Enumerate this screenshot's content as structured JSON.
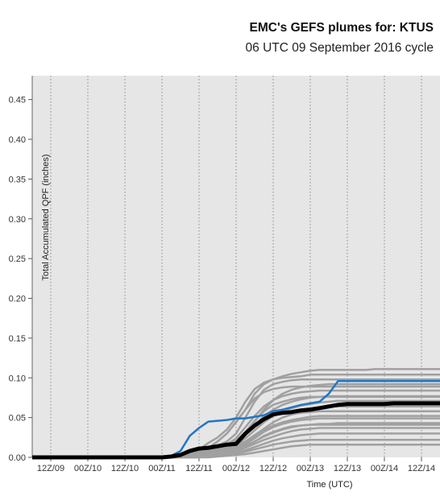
{
  "header": {
    "title": "EMC's GEFS plumes for: KTUS",
    "subtitle": "06 UTC 09 September 2016 cycle"
  },
  "chart_data": {
    "type": "line",
    "title": "EMC's GEFS plumes for: KTUS",
    "subtitle": "06 UTC 09 September 2016 cycle",
    "xlabel": "Time (UTC)",
    "ylabel": "Total Accumulated QPF (inches)",
    "x_unit_note": "forecast hour from 06 UTC 09 Sep 2016",
    "xlim": [
      0,
      132
    ],
    "ylim": [
      0,
      0.48
    ],
    "yticks": [
      0.0,
      0.05,
      0.1,
      0.15,
      0.2,
      0.25,
      0.3,
      0.35,
      0.4,
      0.45
    ],
    "ytick_labels": [
      "0.00",
      "0.05",
      "0.10",
      "0.15",
      "0.20",
      "0.25",
      "0.30",
      "0.35",
      "0.40",
      "0.45"
    ],
    "xticks": [
      6,
      18,
      30,
      42,
      54,
      66,
      78,
      90,
      102,
      114,
      126
    ],
    "xtick_labels": [
      "12Z/09",
      "00Z/10",
      "12Z/10",
      "00Z/11",
      "12Z/11",
      "00Z/12",
      "12Z/12",
      "00Z/13",
      "12Z/13",
      "00Z/14",
      "12Z/14"
    ],
    "grid": "vertical dotted",
    "background": "#e6e6e6",
    "colors": {
      "members": "#a0a0a0",
      "control": "#1f77c4",
      "mean": "#000000"
    },
    "x": [
      0,
      3,
      6,
      9,
      12,
      15,
      18,
      21,
      24,
      27,
      30,
      33,
      36,
      39,
      42,
      45,
      48,
      51,
      54,
      57,
      60,
      63,
      66,
      69,
      72,
      75,
      78,
      81,
      84,
      87,
      90,
      93,
      96,
      99,
      102,
      105,
      108,
      111,
      114,
      117,
      120,
      123,
      126,
      129,
      132
    ],
    "series": [
      {
        "role": "control",
        "values": [
          0,
          0,
          0,
          0,
          0,
          0,
          0,
          0,
          0,
          0,
          0,
          0,
          0,
          0,
          0,
          0.002,
          0.008,
          0.027,
          0.037,
          0.045,
          0.046,
          0.047,
          0.049,
          0.049,
          0.051,
          0.053,
          0.058,
          0.06,
          0.063,
          0.066,
          0.068,
          0.07,
          0.08,
          0.096,
          0.096,
          0.096,
          0.096,
          0.096,
          0.096,
          0.096,
          0.096,
          0.096,
          0.096,
          0.096,
          0.096
        ]
      },
      {
        "role": "mean",
        "values": [
          0,
          0,
          0,
          0,
          0,
          0,
          0,
          0,
          0,
          0,
          0,
          0,
          0,
          0,
          0,
          0.001,
          0.003,
          0.008,
          0.011,
          0.012,
          0.014,
          0.016,
          0.017,
          0.03,
          0.04,
          0.048,
          0.054,
          0.056,
          0.057,
          0.059,
          0.06,
          0.062,
          0.064,
          0.066,
          0.067,
          0.067,
          0.067,
          0.067,
          0.067,
          0.068,
          0.068,
          0.068,
          0.068,
          0.068,
          0.068
        ]
      },
      {
        "role": "member",
        "values": [
          0,
          0,
          0,
          0,
          0,
          0,
          0,
          0,
          0,
          0,
          0,
          0,
          0,
          0,
          0,
          0,
          0.002,
          0.004,
          0.008,
          0.012,
          0.02,
          0.03,
          0.045,
          0.06,
          0.08,
          0.092,
          0.098,
          0.102,
          0.105,
          0.107,
          0.109,
          0.11,
          0.11,
          0.11,
          0.11,
          0.11,
          0.11,
          0.111,
          0.111,
          0.111,
          0.111,
          0.111,
          0.111,
          0.111,
          0.111
        ]
      },
      {
        "role": "member",
        "values": [
          0,
          0,
          0,
          0,
          0,
          0,
          0,
          0,
          0,
          0,
          0,
          0,
          0,
          0,
          0,
          0,
          0.001,
          0.005,
          0.01,
          0.018,
          0.025,
          0.035,
          0.05,
          0.07,
          0.086,
          0.094,
          0.098,
          0.1,
          0.101,
          0.102,
          0.104,
          0.104,
          0.104,
          0.104,
          0.104,
          0.104,
          0.104,
          0.104,
          0.104,
          0.104,
          0.104,
          0.104,
          0.104,
          0.104,
          0.104
        ]
      },
      {
        "role": "member",
        "values": [
          0,
          0,
          0,
          0,
          0,
          0,
          0,
          0,
          0,
          0,
          0,
          0,
          0,
          0,
          0,
          0,
          0,
          0.002,
          0.005,
          0.01,
          0.015,
          0.02,
          0.03,
          0.05,
          0.07,
          0.085,
          0.092,
          0.095,
          0.097,
          0.098,
          0.098,
          0.098,
          0.098,
          0.098,
          0.098,
          0.098,
          0.098,
          0.098,
          0.098,
          0.098,
          0.098,
          0.098,
          0.098,
          0.098,
          0.098
        ]
      },
      {
        "role": "member",
        "values": [
          0,
          0,
          0,
          0,
          0,
          0,
          0,
          0,
          0,
          0,
          0,
          0,
          0,
          0,
          0,
          0,
          0,
          0,
          0.002,
          0.004,
          0.008,
          0.012,
          0.018,
          0.03,
          0.045,
          0.06,
          0.072,
          0.08,
          0.085,
          0.088,
          0.09,
          0.091,
          0.092,
          0.092,
          0.092,
          0.092,
          0.092,
          0.092,
          0.092,
          0.092,
          0.092,
          0.092,
          0.092,
          0.092,
          0.092
        ]
      },
      {
        "role": "member",
        "values": [
          0,
          0,
          0,
          0,
          0,
          0,
          0,
          0,
          0,
          0,
          0,
          0,
          0,
          0,
          0,
          0,
          0,
          0.001,
          0.003,
          0.006,
          0.01,
          0.016,
          0.024,
          0.038,
          0.052,
          0.064,
          0.072,
          0.077,
          0.08,
          0.082,
          0.083,
          0.084,
          0.084,
          0.084,
          0.084,
          0.084,
          0.084,
          0.084,
          0.084,
          0.084,
          0.084,
          0.084,
          0.084,
          0.084,
          0.084
        ]
      },
      {
        "role": "member",
        "values": [
          0,
          0,
          0,
          0,
          0,
          0,
          0,
          0,
          0,
          0,
          0,
          0,
          0,
          0,
          0,
          0,
          0,
          0,
          0.002,
          0.005,
          0.008,
          0.012,
          0.018,
          0.028,
          0.04,
          0.052,
          0.06,
          0.066,
          0.07,
          0.073,
          0.075,
          0.076,
          0.077,
          0.077,
          0.077,
          0.077,
          0.077,
          0.077,
          0.077,
          0.077,
          0.077,
          0.077,
          0.077,
          0.077,
          0.077
        ]
      },
      {
        "role": "member",
        "values": [
          0,
          0,
          0,
          0,
          0,
          0,
          0,
          0,
          0,
          0,
          0,
          0,
          0,
          0,
          0,
          0,
          0,
          0,
          0.001,
          0.003,
          0.006,
          0.01,
          0.015,
          0.024,
          0.034,
          0.044,
          0.052,
          0.058,
          0.062,
          0.065,
          0.067,
          0.069,
          0.07,
          0.071,
          0.071,
          0.071,
          0.071,
          0.071,
          0.071,
          0.071,
          0.071,
          0.071,
          0.071,
          0.071,
          0.071
        ]
      },
      {
        "role": "member",
        "values": [
          0,
          0,
          0,
          0,
          0,
          0,
          0,
          0,
          0,
          0,
          0,
          0,
          0,
          0,
          0,
          0,
          0,
          0.001,
          0.004,
          0.008,
          0.012,
          0.016,
          0.022,
          0.03,
          0.038,
          0.046,
          0.052,
          0.056,
          0.058,
          0.06,
          0.062,
          0.063,
          0.064,
          0.064,
          0.064,
          0.064,
          0.064,
          0.064,
          0.064,
          0.064,
          0.064,
          0.064,
          0.064,
          0.064,
          0.064
        ]
      },
      {
        "role": "member",
        "values": [
          0,
          0,
          0,
          0,
          0,
          0,
          0,
          0,
          0,
          0,
          0,
          0,
          0,
          0,
          0,
          0,
          0,
          0,
          0.002,
          0.004,
          0.007,
          0.01,
          0.014,
          0.02,
          0.028,
          0.036,
          0.044,
          0.05,
          0.054,
          0.056,
          0.057,
          0.058,
          0.058,
          0.058,
          0.058,
          0.058,
          0.058,
          0.058,
          0.058,
          0.058,
          0.058,
          0.058,
          0.058,
          0.058,
          0.058
        ]
      },
      {
        "role": "member",
        "values": [
          0,
          0,
          0,
          0,
          0,
          0,
          0,
          0,
          0,
          0,
          0,
          0,
          0,
          0,
          0,
          0,
          0,
          0,
          0.001,
          0.002,
          0.004,
          0.007,
          0.01,
          0.016,
          0.024,
          0.032,
          0.038,
          0.042,
          0.045,
          0.047,
          0.048,
          0.049,
          0.049,
          0.049,
          0.049,
          0.049,
          0.049,
          0.049,
          0.049,
          0.049,
          0.049,
          0.049,
          0.049,
          0.049,
          0.049
        ]
      },
      {
        "role": "member",
        "values": [
          0,
          0,
          0,
          0,
          0,
          0,
          0,
          0,
          0,
          0,
          0,
          0,
          0,
          0,
          0,
          0,
          0,
          0,
          0,
          0.002,
          0.004,
          0.006,
          0.009,
          0.014,
          0.02,
          0.026,
          0.031,
          0.035,
          0.038,
          0.04,
          0.041,
          0.042,
          0.042,
          0.043,
          0.043,
          0.043,
          0.043,
          0.043,
          0.043,
          0.043,
          0.043,
          0.043,
          0.043,
          0.043,
          0.043
        ]
      },
      {
        "role": "member",
        "values": [
          0,
          0,
          0,
          0,
          0,
          0,
          0,
          0,
          0,
          0,
          0,
          0,
          0,
          0,
          0,
          0,
          0,
          0,
          0.001,
          0.002,
          0.003,
          0.005,
          0.008,
          0.012,
          0.017,
          0.022,
          0.026,
          0.03,
          0.033,
          0.035,
          0.036,
          0.037,
          0.037,
          0.037,
          0.037,
          0.037,
          0.037,
          0.037,
          0.037,
          0.037,
          0.037,
          0.037,
          0.037,
          0.037,
          0.037
        ]
      },
      {
        "role": "member",
        "values": [
          0,
          0,
          0,
          0,
          0,
          0,
          0,
          0,
          0,
          0,
          0,
          0,
          0,
          0,
          0,
          0,
          0,
          0,
          0,
          0.001,
          0.002,
          0.004,
          0.006,
          0.009,
          0.013,
          0.017,
          0.021,
          0.024,
          0.026,
          0.028,
          0.029,
          0.03,
          0.03,
          0.03,
          0.03,
          0.03,
          0.03,
          0.03,
          0.03,
          0.03,
          0.03,
          0.03,
          0.03,
          0.03,
          0.03
        ]
      },
      {
        "role": "member",
        "values": [
          0,
          0,
          0,
          0,
          0,
          0,
          0,
          0,
          0,
          0,
          0,
          0,
          0,
          0,
          0,
          0,
          0,
          0,
          0,
          0.001,
          0.002,
          0.003,
          0.005,
          0.007,
          0.01,
          0.013,
          0.016,
          0.018,
          0.02,
          0.021,
          0.022,
          0.022,
          0.022,
          0.022,
          0.022,
          0.022,
          0.022,
          0.022,
          0.022,
          0.022,
          0.022,
          0.022,
          0.022,
          0.022,
          0.022
        ]
      },
      {
        "role": "member",
        "values": [
          0,
          0,
          0,
          0,
          0,
          0,
          0,
          0,
          0,
          0,
          0,
          0,
          0,
          0,
          0,
          0,
          0,
          0,
          0,
          0,
          0.001,
          0.002,
          0.003,
          0.004,
          0.006,
          0.008,
          0.01,
          0.012,
          0.014,
          0.015,
          0.016,
          0.016,
          0.016,
          0.016,
          0.016,
          0.016,
          0.016,
          0.016,
          0.016,
          0.016,
          0.016,
          0.016,
          0.016,
          0.016,
          0.016
        ]
      },
      {
        "role": "member",
        "values": [
          0,
          0,
          0,
          0,
          0,
          0,
          0,
          0,
          0,
          0,
          0,
          0,
          0,
          0,
          0,
          0,
          0,
          0.002,
          0.006,
          0.012,
          0.02,
          0.03,
          0.044,
          0.06,
          0.074,
          0.082,
          0.086,
          0.088,
          0.089,
          0.089,
          0.089,
          0.089,
          0.089,
          0.089,
          0.089,
          0.089,
          0.089,
          0.089,
          0.089,
          0.089,
          0.089,
          0.089,
          0.089,
          0.089,
          0.089
        ]
      },
      {
        "role": "member",
        "values": [
          0,
          0,
          0,
          0,
          0,
          0,
          0,
          0,
          0,
          0,
          0,
          0,
          0,
          0,
          0,
          0,
          0,
          0,
          0.001,
          0.004,
          0.008,
          0.013,
          0.02,
          0.032,
          0.046,
          0.058,
          0.066,
          0.07,
          0.073,
          0.075,
          0.076,
          0.076,
          0.076,
          0.076,
          0.076,
          0.076,
          0.076,
          0.076,
          0.076,
          0.076,
          0.076,
          0.076,
          0.076,
          0.076,
          0.076
        ]
      },
      {
        "role": "member",
        "values": [
          0,
          0,
          0,
          0,
          0,
          0,
          0,
          0,
          0,
          0,
          0,
          0,
          0,
          0,
          0,
          0,
          0,
          0,
          0.001,
          0.003,
          0.005,
          0.008,
          0.012,
          0.018,
          0.026,
          0.034,
          0.04,
          0.044,
          0.047,
          0.049,
          0.051,
          0.052,
          0.052,
          0.052,
          0.052,
          0.052,
          0.052,
          0.052,
          0.052,
          0.052,
          0.052,
          0.052,
          0.052,
          0.052,
          0.052
        ]
      },
      {
        "role": "member",
        "values": [
          0,
          0,
          0,
          0,
          0,
          0,
          0,
          0,
          0,
          0,
          0,
          0,
          0,
          0,
          0,
          0,
          0,
          0,
          0,
          0.002,
          0.003,
          0.005,
          0.008,
          0.013,
          0.02,
          0.027,
          0.032,
          0.036,
          0.039,
          0.04,
          0.041,
          0.041,
          0.041,
          0.041,
          0.041,
          0.041,
          0.041,
          0.041,
          0.041,
          0.041,
          0.041,
          0.041,
          0.041,
          0.041,
          0.041
        ]
      }
    ]
  }
}
